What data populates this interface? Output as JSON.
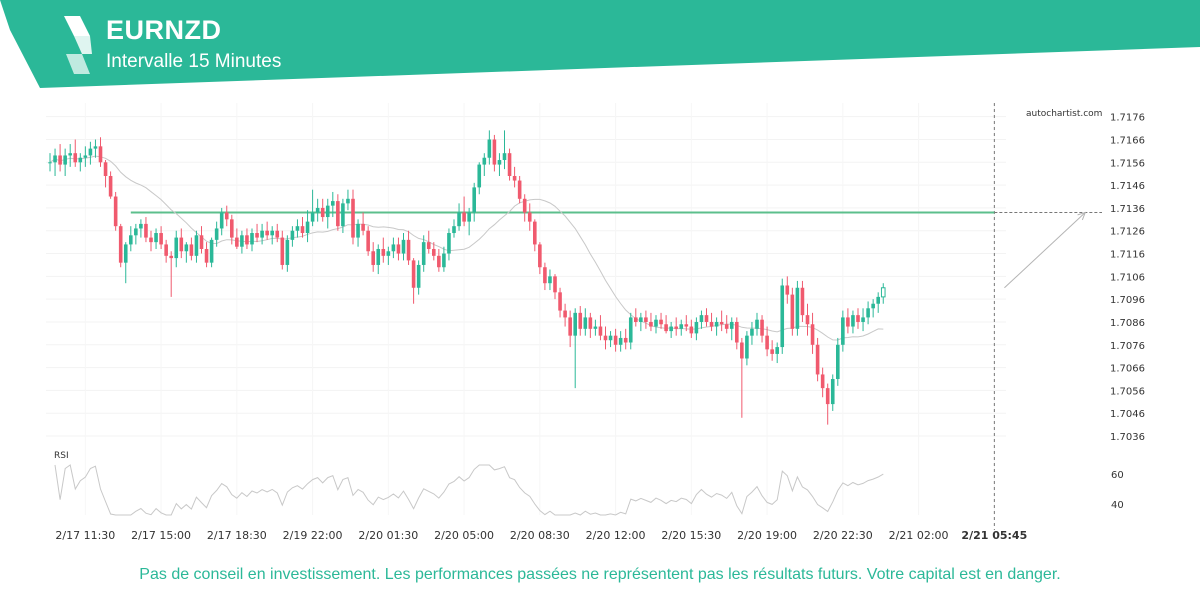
{
  "header": {
    "title": "EURNZD",
    "subtitle": "Intervalle 15 Minutes"
  },
  "watermark": "autochartist.com",
  "rsi_label": "RSI",
  "disclaimer": "Pas de conseil en investissement. Les performances passées ne représentent pas les résultats futurs. Votre capital est en danger.",
  "colors": {
    "brand": "#2bb898",
    "up": "#2bb898",
    "down": "#f05a6e",
    "resistance": "#5cbf8c",
    "ma_line": "#c8c8c8",
    "rsi_line": "#c8c8c8",
    "projection": "#b4b4b4"
  },
  "chart_data": {
    "type": "candlestick",
    "symbol": "EURNZD",
    "interval": "15 Minutes",
    "y_ticks": [
      1.7176,
      1.7166,
      1.7156,
      1.7146,
      1.7136,
      1.7126,
      1.7116,
      1.7106,
      1.7096,
      1.7086,
      1.7076,
      1.7066,
      1.7056,
      1.7046,
      1.7036
    ],
    "ylim": [
      1.7029,
      1.7182
    ],
    "x_ticks": [
      "2/17 11:30",
      "2/17 15:00",
      "2/17 18:30",
      "2/19 22:00",
      "2/20 01:30",
      "2/20 05:00",
      "2/20 08:30",
      "2/20 12:00",
      "2/20 15:30",
      "2/20 19:00",
      "2/20 22:30",
      "2/21 02:00",
      "2/21 05:45"
    ],
    "x_tick_bar_index": [
      7,
      22,
      37,
      52,
      67,
      82,
      97,
      112,
      127,
      142,
      157,
      172,
      187
    ],
    "current_bar_index": 187,
    "resistance_level": 1.7134,
    "resistance_start_index": 16,
    "projection": {
      "from_index": 189,
      "from_price": 1.7101,
      "to_index": 205,
      "to_price": 1.7134
    },
    "candles_ohlc": [
      [
        1.7156,
        1.716,
        1.7152,
        1.7156
      ],
      [
        1.7156,
        1.7162,
        1.715,
        1.7159
      ],
      [
        1.7159,
        1.7164,
        1.7152,
        1.7155
      ],
      [
        1.7155,
        1.7162,
        1.715,
        1.7159
      ],
      [
        1.7159,
        1.7164,
        1.7154,
        1.716
      ],
      [
        1.716,
        1.7166,
        1.7154,
        1.7156
      ],
      [
        1.7156,
        1.716,
        1.7152,
        1.7158
      ],
      [
        1.7158,
        1.7163,
        1.7154,
        1.7159
      ],
      [
        1.7159,
        1.7165,
        1.7155,
        1.7162
      ],
      [
        1.7162,
        1.7166,
        1.7158,
        1.7163
      ],
      [
        1.7163,
        1.7167,
        1.7154,
        1.7156
      ],
      [
        1.7156,
        1.7157,
        1.7145,
        1.715
      ],
      [
        1.715,
        1.7152,
        1.714,
        1.7141
      ],
      [
        1.7141,
        1.7143,
        1.7126,
        1.7128
      ],
      [
        1.7128,
        1.7129,
        1.711,
        1.7112
      ],
      [
        1.7112,
        1.7121,
        1.7103,
        1.712
      ],
      [
        1.712,
        1.7128,
        1.7117,
        1.7124
      ],
      [
        1.7124,
        1.7129,
        1.712,
        1.7127
      ],
      [
        1.7127,
        1.7131,
        1.7123,
        1.7129
      ],
      [
        1.7129,
        1.7132,
        1.7121,
        1.7123
      ],
      [
        1.7123,
        1.7126,
        1.7117,
        1.7121
      ],
      [
        1.7121,
        1.7127,
        1.7118,
        1.7125
      ],
      [
        1.7125,
        1.7128,
        1.7118,
        1.712
      ],
      [
        1.712,
        1.7122,
        1.7112,
        1.7115
      ],
      [
        1.7115,
        1.7117,
        1.7097,
        1.7114
      ],
      [
        1.7114,
        1.7126,
        1.711,
        1.7123
      ],
      [
        1.7123,
        1.7127,
        1.7114,
        1.7117
      ],
      [
        1.7117,
        1.7121,
        1.7112,
        1.712
      ],
      [
        1.712,
        1.7123,
        1.7113,
        1.7115
      ],
      [
        1.7115,
        1.7126,
        1.7112,
        1.7124
      ],
      [
        1.7124,
        1.7128,
        1.7116,
        1.7118
      ],
      [
        1.7118,
        1.7121,
        1.711,
        1.7112
      ],
      [
        1.7112,
        1.7123,
        1.711,
        1.7122
      ],
      [
        1.7122,
        1.713,
        1.7119,
        1.7127
      ],
      [
        1.7127,
        1.7136,
        1.7124,
        1.7134
      ],
      [
        1.7134,
        1.7137,
        1.7128,
        1.7131
      ],
      [
        1.7131,
        1.7133,
        1.712,
        1.7123
      ],
      [
        1.7123,
        1.7127,
        1.7118,
        1.7119
      ],
      [
        1.7119,
        1.7126,
        1.7116,
        1.7124
      ],
      [
        1.7124,
        1.7127,
        1.7118,
        1.712
      ],
      [
        1.712,
        1.7127,
        1.7117,
        1.7125
      ],
      [
        1.7125,
        1.7129,
        1.7121,
        1.7123
      ],
      [
        1.7123,
        1.7129,
        1.712,
        1.7126
      ],
      [
        1.7126,
        1.713,
        1.7122,
        1.7124
      ],
      [
        1.7124,
        1.7128,
        1.712,
        1.7126
      ],
      [
        1.7126,
        1.7129,
        1.7121,
        1.7123
      ],
      [
        1.7123,
        1.7126,
        1.7109,
        1.7111
      ],
      [
        1.7111,
        1.7124,
        1.7108,
        1.7122
      ],
      [
        1.7122,
        1.7128,
        1.7119,
        1.7126
      ],
      [
        1.7126,
        1.7131,
        1.7123,
        1.7128
      ],
      [
        1.7128,
        1.7132,
        1.7123,
        1.7125
      ],
      [
        1.7125,
        1.7135,
        1.7121,
        1.713
      ],
      [
        1.713,
        1.7144,
        1.7128,
        1.7134
      ],
      [
        1.7134,
        1.714,
        1.713,
        1.7136
      ],
      [
        1.7136,
        1.714,
        1.713,
        1.7132
      ],
      [
        1.7132,
        1.714,
        1.7127,
        1.7137
      ],
      [
        1.7137,
        1.7143,
        1.7132,
        1.7139
      ],
      [
        1.7139,
        1.7142,
        1.7126,
        1.7128
      ],
      [
        1.7128,
        1.714,
        1.7125,
        1.7138
      ],
      [
        1.7138,
        1.7144,
        1.7135,
        1.714
      ],
      [
        1.714,
        1.7144,
        1.712,
        1.7123
      ],
      [
        1.7123,
        1.7131,
        1.7119,
        1.7129
      ],
      [
        1.7129,
        1.7134,
        1.7124,
        1.7126
      ],
      [
        1.7126,
        1.7128,
        1.7115,
        1.7117
      ],
      [
        1.7117,
        1.7121,
        1.7108,
        1.7111
      ],
      [
        1.7111,
        1.712,
        1.7107,
        1.7118
      ],
      [
        1.7118,
        1.7123,
        1.7112,
        1.7115
      ],
      [
        1.7115,
        1.7119,
        1.7111,
        1.7117
      ],
      [
        1.7117,
        1.7123,
        1.7114,
        1.712
      ],
      [
        1.712,
        1.7123,
        1.7113,
        1.7116
      ],
      [
        1.7116,
        1.7125,
        1.7113,
        1.7122
      ],
      [
        1.7122,
        1.7126,
        1.7111,
        1.7113
      ],
      [
        1.7113,
        1.7114,
        1.7094,
        1.7101
      ],
      [
        1.7101,
        1.7113,
        1.7098,
        1.7111
      ],
      [
        1.7111,
        1.7124,
        1.7108,
        1.7121
      ],
      [
        1.7121,
        1.7126,
        1.7116,
        1.7118
      ],
      [
        1.7118,
        1.7121,
        1.7113,
        1.7115
      ],
      [
        1.7115,
        1.7118,
        1.7108,
        1.711
      ],
      [
        1.711,
        1.7119,
        1.7108,
        1.7116
      ],
      [
        1.7116,
        1.7127,
        1.7113,
        1.7125
      ],
      [
        1.7125,
        1.7131,
        1.7123,
        1.7128
      ],
      [
        1.7128,
        1.7138,
        1.7126,
        1.7134
      ],
      [
        1.7134,
        1.7141,
        1.7128,
        1.713
      ],
      [
        1.713,
        1.7136,
        1.7124,
        1.7134
      ],
      [
        1.7134,
        1.7147,
        1.713,
        1.7145
      ],
      [
        1.7145,
        1.7156,
        1.7142,
        1.7155
      ],
      [
        1.7155,
        1.716,
        1.715,
        1.7158
      ],
      [
        1.7158,
        1.717,
        1.7155,
        1.7166
      ],
      [
        1.7166,
        1.7168,
        1.7152,
        1.7155
      ],
      [
        1.7155,
        1.716,
        1.715,
        1.7157
      ],
      [
        1.7157,
        1.717,
        1.7153,
        1.716
      ],
      [
        1.716,
        1.7162,
        1.7148,
        1.715
      ],
      [
        1.715,
        1.7154,
        1.7145,
        1.7148
      ],
      [
        1.7148,
        1.715,
        1.7138,
        1.714
      ],
      [
        1.714,
        1.7142,
        1.713,
        1.7134
      ],
      [
        1.7134,
        1.7138,
        1.7126,
        1.713
      ],
      [
        1.713,
        1.7131,
        1.7117,
        1.712
      ],
      [
        1.712,
        1.7121,
        1.7107,
        1.711
      ],
      [
        1.711,
        1.7112,
        1.71,
        1.7103
      ],
      [
        1.7103,
        1.7109,
        1.71,
        1.7106
      ],
      [
        1.7106,
        1.7107,
        1.7096,
        1.7099
      ],
      [
        1.7099,
        1.7101,
        1.7088,
        1.7091
      ],
      [
        1.7091,
        1.7094,
        1.7084,
        1.7088
      ],
      [
        1.7088,
        1.7091,
        1.7075,
        1.708
      ],
      [
        1.708,
        1.7092,
        1.7057,
        1.709
      ],
      [
        1.709,
        1.7093,
        1.708,
        1.7083
      ],
      [
        1.7083,
        1.7092,
        1.708,
        1.7088
      ],
      [
        1.7088,
        1.709,
        1.7079,
        1.7083
      ],
      [
        1.7083,
        1.7087,
        1.708,
        1.7084
      ],
      [
        1.7084,
        1.7089,
        1.7078,
        1.708
      ],
      [
        1.708,
        1.7084,
        1.7074,
        1.7078
      ],
      [
        1.7078,
        1.7082,
        1.7075,
        1.708
      ],
      [
        1.708,
        1.7083,
        1.7073,
        1.7076
      ],
      [
        1.7076,
        1.7082,
        1.7073,
        1.7079
      ],
      [
        1.7079,
        1.7083,
        1.7074,
        1.7077
      ],
      [
        1.7077,
        1.709,
        1.7074,
        1.7088
      ],
      [
        1.7088,
        1.7092,
        1.7084,
        1.7086
      ],
      [
        1.7086,
        1.709,
        1.7082,
        1.7088
      ],
      [
        1.7088,
        1.7091,
        1.7083,
        1.7086
      ],
      [
        1.7086,
        1.709,
        1.7082,
        1.7084
      ],
      [
        1.7084,
        1.7089,
        1.7081,
        1.7087
      ],
      [
        1.7087,
        1.709,
        1.7083,
        1.7085
      ],
      [
        1.7085,
        1.7089,
        1.7081,
        1.7082
      ],
      [
        1.7082,
        1.7086,
        1.7079,
        1.7084
      ],
      [
        1.7084,
        1.7088,
        1.708,
        1.7083
      ],
      [
        1.7083,
        1.7087,
        1.708,
        1.7085
      ],
      [
        1.7085,
        1.7089,
        1.7082,
        1.7084
      ],
      [
        1.7084,
        1.7087,
        1.7079,
        1.7081
      ],
      [
        1.7081,
        1.7088,
        1.7078,
        1.7086
      ],
      [
        1.7086,
        1.7091,
        1.7083,
        1.7089
      ],
      [
        1.7089,
        1.7092,
        1.7084,
        1.7086
      ],
      [
        1.7086,
        1.709,
        1.7082,
        1.7084
      ],
      [
        1.7084,
        1.7088,
        1.708,
        1.7086
      ],
      [
        1.7086,
        1.7091,
        1.7082,
        1.7085
      ],
      [
        1.7085,
        1.7089,
        1.7081,
        1.7083
      ],
      [
        1.7083,
        1.7088,
        1.7078,
        1.7086
      ],
      [
        1.7086,
        1.7088,
        1.7074,
        1.7077
      ],
      [
        1.7077,
        1.7079,
        1.7044,
        1.707
      ],
      [
        1.707,
        1.7082,
        1.7067,
        1.708
      ],
      [
        1.708,
        1.7086,
        1.7076,
        1.7083
      ],
      [
        1.7083,
        1.709,
        1.708,
        1.7087
      ],
      [
        1.7087,
        1.7089,
        1.7077,
        1.708
      ],
      [
        1.708,
        1.7084,
        1.7071,
        1.7074
      ],
      [
        1.7074,
        1.7078,
        1.7069,
        1.7072
      ],
      [
        1.7072,
        1.7077,
        1.7068,
        1.7075
      ],
      [
        1.7075,
        1.7105,
        1.7072,
        1.7102
      ],
      [
        1.7102,
        1.7106,
        1.7094,
        1.7098
      ],
      [
        1.7098,
        1.7101,
        1.708,
        1.7083
      ],
      [
        1.7083,
        1.7104,
        1.708,
        1.7101
      ],
      [
        1.7101,
        1.7104,
        1.7086,
        1.7089
      ],
      [
        1.7089,
        1.7094,
        1.708,
        1.7085
      ],
      [
        1.7085,
        1.709,
        1.7072,
        1.7076
      ],
      [
        1.7076,
        1.7079,
        1.706,
        1.7063
      ],
      [
        1.7063,
        1.7066,
        1.7053,
        1.7057
      ],
      [
        1.7057,
        1.7059,
        1.7041,
        1.705
      ],
      [
        1.705,
        1.7063,
        1.7047,
        1.7061
      ],
      [
        1.7061,
        1.7079,
        1.7058,
        1.7076
      ],
      [
        1.7076,
        1.7091,
        1.7073,
        1.7088
      ],
      [
        1.7088,
        1.7092,
        1.7081,
        1.7084
      ],
      [
        1.7084,
        1.7091,
        1.7081,
        1.7089
      ],
      [
        1.7089,
        1.7092,
        1.7083,
        1.7086
      ],
      [
        1.7086,
        1.7092,
        1.7082,
        1.7088
      ],
      [
        1.7088,
        1.7095,
        1.7085,
        1.7092
      ],
      [
        1.7092,
        1.7096,
        1.7088,
        1.7094
      ],
      [
        1.7094,
        1.7099,
        1.709,
        1.7097
      ],
      [
        1.7097,
        1.7103,
        1.7094,
        1.7101
      ]
    ]
  }
}
